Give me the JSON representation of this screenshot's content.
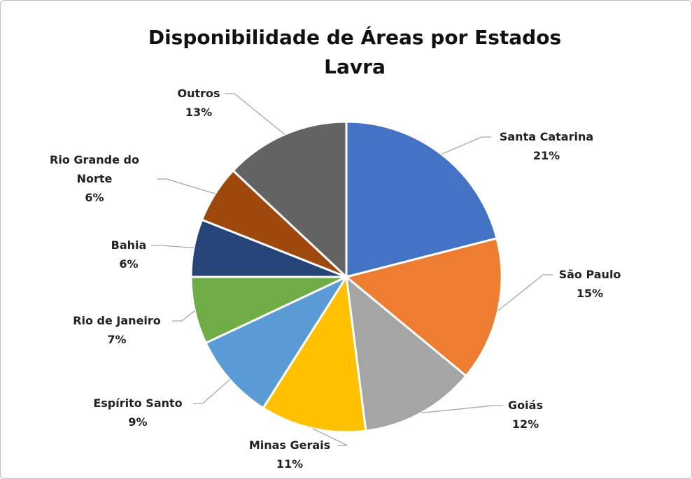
{
  "chart_data": {
    "type": "pie",
    "title": "Disponibilidade de Áreas por Estados",
    "subtitle": "Lavra",
    "categories": [
      "Santa Catarina",
      "São Paulo",
      "Goiás",
      "Minas Gerais",
      "Espírito Santo",
      "Rio de Janeiro",
      "Bahia",
      "Rio Grande do Norte",
      "Outros"
    ],
    "values": [
      21,
      15,
      12,
      11,
      9,
      7,
      6,
      6,
      13
    ],
    "value_labels": [
      "21%",
      "15%",
      "12%",
      "11%",
      "9%",
      "7%",
      "6%",
      "6%",
      "13%"
    ],
    "colors": [
      "#4472c4",
      "#ed7d31",
      "#a5a5a5",
      "#ffc000",
      "#5b9bd5",
      "#70ad47",
      "#264478",
      "#9e480e",
      "#636363"
    ]
  }
}
